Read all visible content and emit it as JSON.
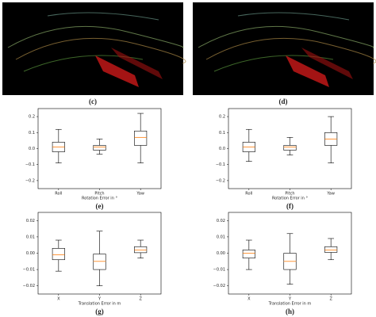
{
  "image_captions": [
    "(c)",
    "(d)"
  ],
  "chart_data": [
    {
      "type": "box",
      "caption": "(e)",
      "xlabel": "Rotation Error in °",
      "categories": [
        "Roll",
        "Pitch",
        "Yaw"
      ],
      "boxes": [
        {
          "whislo": -0.09,
          "q1": -0.02,
          "median": 0.01,
          "q3": 0.04,
          "whishi": 0.12
        },
        {
          "whislo": -0.035,
          "q1": -0.01,
          "median": 0.01,
          "q3": 0.02,
          "whishi": 0.06
        },
        {
          "whislo": -0.09,
          "q1": 0.02,
          "median": 0.07,
          "q3": 0.11,
          "whishi": 0.22
        }
      ],
      "color": "#ff7f0e",
      "ylim": [
        -0.25,
        0.25
      ],
      "yticks": [
        {
          "value": -0.2,
          "label": "−0.2"
        },
        {
          "value": -0.1,
          "label": "−0.1"
        },
        {
          "value": 0,
          "label": "0.0"
        },
        0.1,
        0.2
      ]
    },
    {
      "type": "box",
      "caption": "(f)",
      "xlabel": "Rotation Error in °",
      "categories": [
        "Roll",
        "Pitch",
        "Yaw"
      ],
      "boxes": [
        {
          "whislo": -0.08,
          "q1": -0.02,
          "median": 0.01,
          "q3": 0.04,
          "whishi": 0.12
        },
        {
          "whislo": -0.04,
          "q1": -0.01,
          "median": 0.01,
          "q3": 0.02,
          "whishi": 0.07
        },
        {
          "whislo": -0.09,
          "q1": 0.02,
          "median": 0.06,
          "q3": 0.1,
          "whishi": 0.2
        }
      ],
      "color": "#ff7f0e",
      "ylim": [
        -0.25,
        0.25
      ],
      "yticks": [
        {
          "value": -0.2,
          "label": "−0.2"
        },
        {
          "value": -0.1,
          "label": "−0.1"
        },
        {
          "value": 0,
          "label": "0.0"
        },
        0.1,
        0.2
      ]
    },
    {
      "type": "box",
      "caption": "(g)",
      "xlabel": "Translation Error in m",
      "categories": [
        "X",
        "Y",
        "Z"
      ],
      "boxes": [
        {
          "whislo": -0.011,
          "q1": -0.004,
          "median": -0.001,
          "q3": 0.003,
          "whishi": 0.008
        },
        {
          "whislo": -0.02,
          "q1": -0.01,
          "median": -0.005,
          "q3": -0.0005,
          "whishi": 0.0135
        },
        {
          "whislo": -0.003,
          "q1": 0.0003,
          "median": 0.002,
          "q3": 0.004,
          "whishi": 0.008
        }
      ],
      "color": "#ff7f0e",
      "ylim": [
        -0.025,
        0.025
      ],
      "yticks": [
        {
          "value": -0.02,
          "label": "−0.02"
        },
        {
          "value": -0.01,
          "label": "−0.01"
        },
        {
          "value": 0,
          "label": "0.00"
        },
        0.01,
        0.02
      ]
    },
    {
      "type": "box",
      "caption": "(h)",
      "xlabel": "Translation Error in m",
      "categories": [
        "X",
        "Y",
        "Z"
      ],
      "boxes": [
        {
          "whislo": -0.01,
          "q1": -0.003,
          "median": 0,
          "q3": 0.002,
          "whishi": 0.008
        },
        {
          "whislo": -0.019,
          "q1": -0.01,
          "median": -0.005,
          "q3": 0,
          "whishi": 0.012
        },
        {
          "whislo": -0.004,
          "q1": 0.0005,
          "median": 0.002,
          "q3": 0.004,
          "whishi": 0.009
        }
      ],
      "color": "#ff7f0e",
      "ylim": [
        -0.025,
        0.025
      ],
      "yticks": [
        {
          "value": -0.02,
          "label": "−0.02"
        },
        {
          "value": -0.01,
          "label": "−0.01"
        },
        {
          "value": 0,
          "label": "0.00"
        },
        0.01,
        0.02
      ]
    }
  ]
}
